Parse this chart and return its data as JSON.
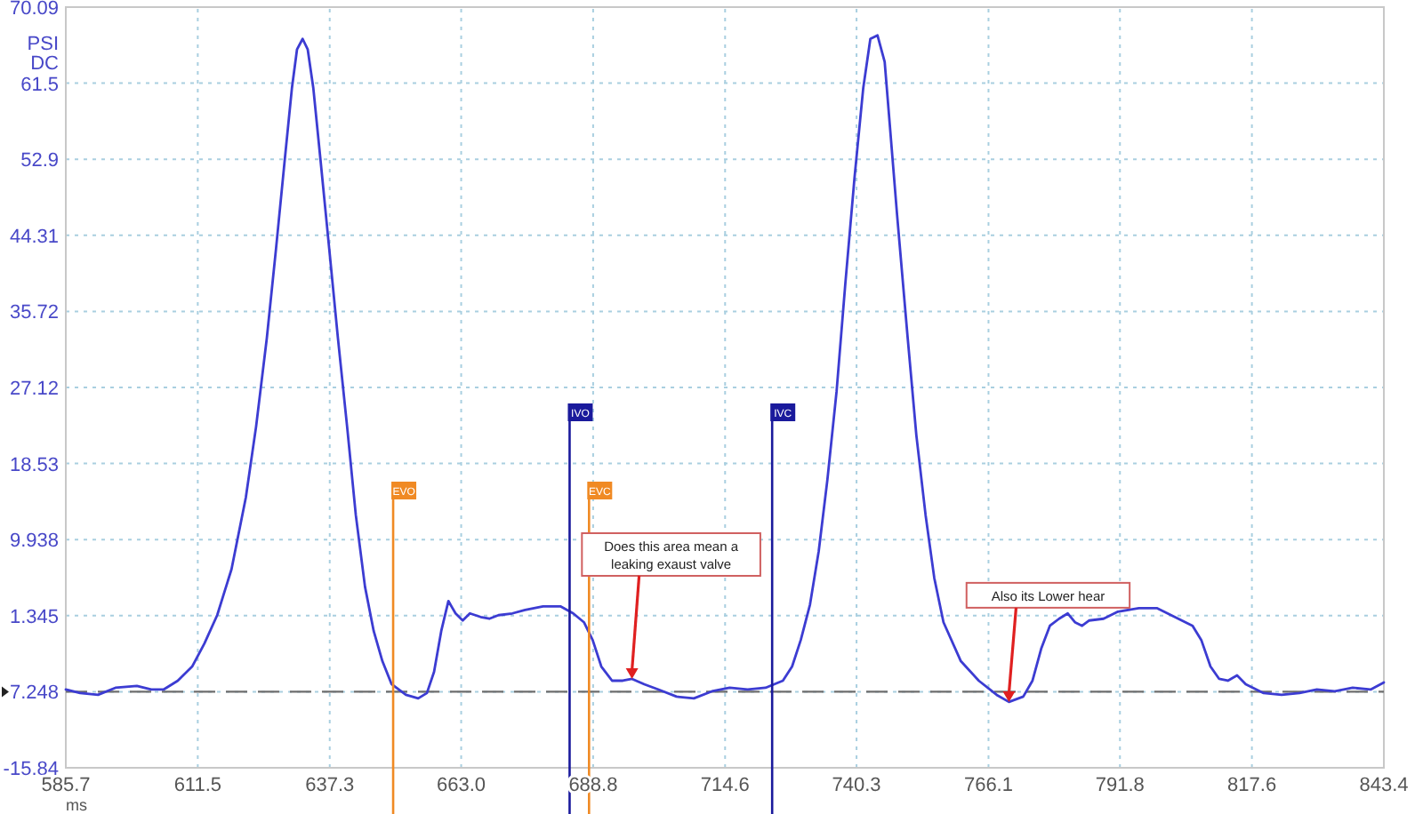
{
  "chart_data": {
    "type": "line",
    "ylabel": "PSI DC",
    "xlabel": "ms",
    "xlim": [
      585.7,
      843.4
    ],
    "xticks": [
      585.7,
      611.5,
      637.3,
      {
        "value": 663.0,
        "label": "663.0"
      },
      688.8,
      714.6,
      740.3,
      766.1,
      791.8,
      817.6,
      843.4
    ],
    "ylim": [
      -15.84,
      70.09
    ],
    "yticks": [
      -15.84,
      {
        "value": -7.248,
        "label": "7.248"
      },
      1.345,
      9.938,
      18.53,
      27.12,
      35.72,
      44.31,
      52.9,
      61.5,
      70.09
    ],
    "grid": true,
    "line_style": "solid",
    "series": [
      {
        "color": "#3c3cd2",
        "x": [
          585.7,
          588.5,
          592.0,
          595.4,
          599.6,
          602.4,
          604.8,
          607.6,
          610.4,
          612.8,
          615.3,
          618.1,
          620.9,
          622.9,
          625.0,
          626.8,
          628.5,
          629.9,
          630.9,
          632.0,
          633.0,
          634.1,
          635.5,
          637.2,
          638.9,
          640.7,
          642.4,
          644.2,
          645.9,
          647.6,
          649.4,
          652.2,
          654.6,
          656.3,
          657.7,
          659.1,
          660.5,
          661.9,
          663.3,
          664.7,
          666.8,
          668.5,
          670.3,
          673.0,
          675.5,
          679.0,
          682.4,
          684.9,
          687.0,
          688.7,
          690.4,
          692.5,
          694.6,
          696.4,
          698.8,
          701.6,
          705.1,
          708.5,
          712.0,
          715.5,
          719.0,
          722.5,
          725.9,
          727.7,
          729.4,
          731.2,
          732.9,
          734.6,
          736.4,
          738.1,
          739.9,
          741.6,
          743.0,
          744.4,
          745.8,
          746.8,
          748.2,
          750.3,
          752.0,
          753.8,
          755.5,
          757.3,
          760.7,
          764.2,
          767.7,
          770.1,
          772.9,
          774.7,
          776.4,
          778.1,
          779.9,
          781.6,
          783.0,
          784.4,
          785.8,
          788.6,
          791.4,
          795.5,
          799.0,
          802.5,
          806.0,
          807.7,
          809.5,
          811.2,
          812.9,
          814.7,
          816.4,
          819.9,
          823.4,
          826.9,
          830.3,
          833.8,
          837.3,
          840.8,
          843.4
        ],
        "values": [
          -7.0,
          -7.4,
          -7.6,
          -6.8,
          -6.6,
          -7.0,
          -7.0,
          -6.0,
          -4.4,
          -1.8,
          1.4,
          6.6,
          14.7,
          22.7,
          32.7,
          42.8,
          52.8,
          60.9,
          65.3,
          66.5,
          65.3,
          60.9,
          52.8,
          42.8,
          32.7,
          22.7,
          12.7,
          4.6,
          -0.4,
          -3.8,
          -6.4,
          -7.6,
          -8.0,
          -7.4,
          -5.0,
          -0.4,
          3.0,
          1.6,
          0.8,
          1.6,
          1.2,
          1.0,
          1.4,
          1.6,
          2.0,
          2.4,
          2.4,
          1.6,
          0.6,
          -1.4,
          -4.4,
          -6.0,
          -6.0,
          -5.8,
          -6.4,
          -7.0,
          -7.8,
          -8.0,
          -7.2,
          -6.8,
          -7.0,
          -6.8,
          -6.0,
          -4.4,
          -1.4,
          2.6,
          8.6,
          16.7,
          26.7,
          38.8,
          50.8,
          60.9,
          66.5,
          66.9,
          63.9,
          56.8,
          46.8,
          32.7,
          21.7,
          12.7,
          5.6,
          0.6,
          -3.8,
          -6.0,
          -7.6,
          -8.4,
          -7.8,
          -6.0,
          -2.4,
          0.2,
          1.0,
          1.6,
          0.6,
          0.2,
          0.8,
          1.0,
          1.8,
          2.2,
          2.2,
          1.2,
          0.2,
          -1.4,
          -4.4,
          -5.8,
          -6.0,
          -5.4,
          -6.4,
          -7.4,
          -7.6,
          -7.4,
          -7.0,
          -7.2,
          -6.8,
          -7.0,
          -6.2
        ]
      }
    ],
    "ref_lines": [
      {
        "axis": "y",
        "value": -7.248,
        "color": "#6e6e6e",
        "line_style": "dashed"
      },
      {
        "axis": "x",
        "value": 649.7,
        "label": "EVO",
        "color": "#f08a24"
      },
      {
        "axis": "x",
        "value": 684.2,
        "label": "IVO",
        "color": "#1a1a9c"
      },
      {
        "axis": "x",
        "value": 688.0,
        "label": "EVC",
        "color": "#f08a24"
      },
      {
        "axis": "x",
        "value": 723.8,
        "label": "IVC",
        "color": "#1a1a9c"
      }
    ],
    "annotations": [
      {
        "text": "Does this area mean a leaking exaust valve",
        "x": 696.4,
        "y": -5.8
      },
      {
        "text": "Also its Lower hear",
        "x": 770.1,
        "y": -8.4
      }
    ]
  }
}
